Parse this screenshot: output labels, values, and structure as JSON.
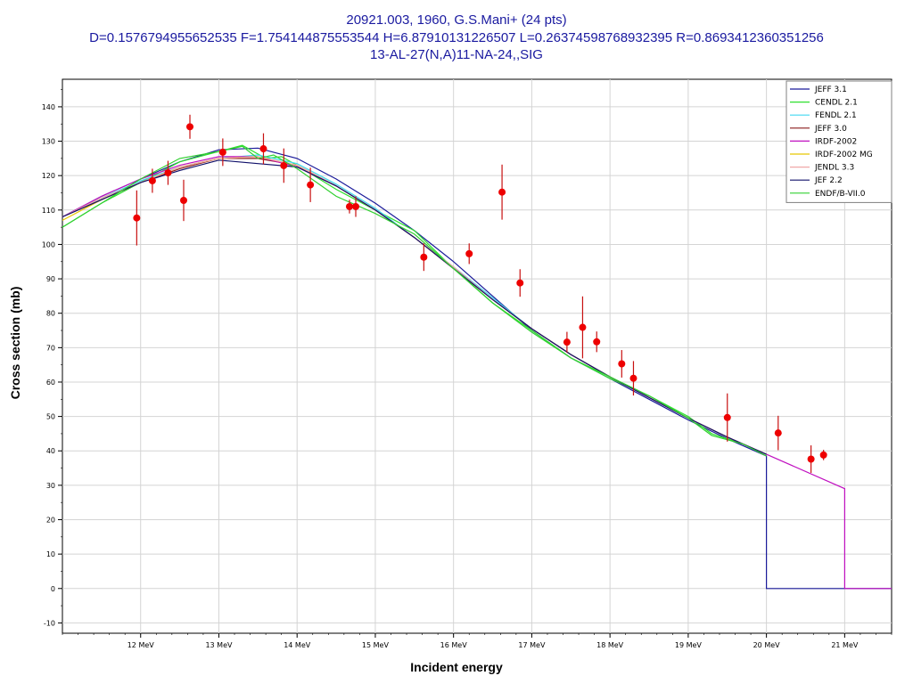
{
  "title": {
    "line1": "20921.003, 1960, G.S.Mani+ (24 pts)",
    "line2": "D=0.1576794955652535 F=1.754144875553544 H=6.87910131226507 L=0.26374598768932395 R=0.8693412360351256",
    "line3": "13-AL-27(N,A)11-NA-24,,SIG"
  },
  "chart_data": {
    "type": "line",
    "xlabel": "Incident energy",
    "ylabel": "Cross section (mb)",
    "xlim": [
      11.0,
      21.6
    ],
    "ylim": [
      -13,
      148
    ],
    "x_ticks": [
      12,
      13,
      14,
      15,
      16,
      17,
      18,
      19,
      20,
      21
    ],
    "x_tick_labels": [
      "12 MeV",
      "13 MeV",
      "14 MeV",
      "15 MeV",
      "16 MeV",
      "17 MeV",
      "18 MeV",
      "19 MeV",
      "20 MeV",
      "21 MeV"
    ],
    "y_ticks": [
      -10,
      0,
      10,
      20,
      30,
      40,
      50,
      60,
      70,
      80,
      90,
      100,
      110,
      120,
      130,
      140
    ],
    "grid": true,
    "legend_position": "top-right",
    "series": [
      {
        "name": "JEFF 3.1",
        "color": "#1a1a9a",
        "x": [
          11.0,
          11.5,
          12.0,
          12.5,
          13.0,
          13.5,
          14.0,
          14.5,
          15.0,
          15.5,
          16.0,
          16.5,
          17.0,
          17.5,
          18.0,
          18.5,
          19.0,
          19.5,
          20.0,
          20.0,
          21.6
        ],
        "y": [
          108,
          114,
          119,
          124,
          127.5,
          128,
          125,
          119,
          112,
          104,
          95,
          85,
          75,
          67,
          61,
          55,
          49,
          43.5,
          38.5,
          0,
          0
        ]
      },
      {
        "name": "CENDL 2.1",
        "color": "#2ee02e",
        "x": [
          11.0,
          11.5,
          12.0,
          12.5,
          13.0,
          13.3,
          13.6,
          13.8,
          14.0,
          14.5,
          15.0,
          15.5,
          16.0,
          16.5,
          17.0,
          17.5,
          18.0,
          18.5,
          19.0,
          19.3,
          19.7,
          20.0
        ],
        "y": [
          105,
          112,
          118,
          124,
          127,
          128.8,
          125,
          125.5,
          123,
          116,
          110,
          104,
          93,
          83,
          75,
          67,
          61,
          56,
          50,
          45,
          42,
          39
        ]
      },
      {
        "name": "FENDL 2.1",
        "color": "#40d8f0",
        "x": [
          11.0,
          11.5,
          12.0,
          12.5,
          13.0,
          13.5,
          14.0,
          14.5,
          15.0,
          15.5,
          16.0,
          16.5,
          17.0,
          17.5,
          18.0,
          18.5,
          19.0,
          19.5,
          20.0
        ],
        "y": [
          108,
          113.5,
          118.5,
          122.5,
          125,
          126,
          123.5,
          117.5,
          110.5,
          102,
          93.5,
          84.5,
          75.5,
          68,
          61.5,
          55.5,
          49.5,
          44,
          39
        ]
      },
      {
        "name": "JEFF 3.0",
        "color": "#8a1a1a",
        "x": [
          11.0,
          11.5,
          12.0,
          12.5,
          13.0,
          13.5,
          14.0,
          14.5,
          15.0,
          15.5,
          16.0,
          16.5,
          17.0,
          17.5,
          18.0,
          18.5,
          19.0,
          19.5,
          20.0
        ],
        "y": [
          108,
          113,
          118,
          122,
          125,
          125,
          123,
          117,
          110,
          102,
          93,
          84,
          75.5,
          68,
          61.5,
          55.5,
          49.5,
          44,
          39
        ]
      },
      {
        "name": "IRDF-2002",
        "color": "#c010c0",
        "x": [
          11.0,
          11.5,
          12.0,
          12.5,
          13.0,
          13.5,
          14.0,
          14.5,
          15.0,
          15.5,
          16.0,
          16.5,
          17.0,
          17.5,
          18.0,
          18.5,
          19.0,
          19.5,
          20.0,
          21.0,
          21.0,
          21.6
        ],
        "y": [
          108,
          114,
          119,
          123,
          125.5,
          125.5,
          122.5,
          117,
          110,
          102,
          93,
          84,
          75.5,
          68,
          61.5,
          55.5,
          49.5,
          44,
          39,
          29,
          0,
          0
        ]
      },
      {
        "name": "IRDF-2002 MG",
        "color": "#e8c800",
        "x": [
          11.0,
          11.5,
          12.0,
          12.5,
          13.0,
          13.5,
          14.0,
          14.5,
          15.0,
          15.5,
          16.0,
          16.5,
          17.0,
          17.5,
          18.0,
          18.5,
          19.0,
          19.5,
          20.0
        ],
        "y": [
          107,
          113,
          118,
          122.5,
          125,
          125.5,
          123,
          117,
          110,
          102,
          93,
          84,
          75.5,
          68,
          61.5,
          55.5,
          49.5,
          44,
          39
        ]
      },
      {
        "name": "JENDL 3.3",
        "color": "#f0a8a8",
        "x": [
          11.0,
          11.5,
          12.0,
          12.5,
          13.0,
          13.5,
          14.0,
          14.5,
          15.0,
          15.5,
          16.0,
          16.5,
          17.0,
          17.5,
          18.0,
          18.5,
          19.0,
          19.5,
          20.0
        ],
        "y": [
          108,
          113.5,
          118,
          122.5,
          125,
          125.5,
          123,
          117,
          110,
          102,
          93.5,
          84,
          75.5,
          68,
          61.5,
          55.5,
          49.5,
          44,
          39
        ]
      },
      {
        "name": "JEF 2.2",
        "color": "#10106a",
        "x": [
          11.0,
          11.5,
          12.0,
          12.5,
          13.0,
          13.5,
          14.0,
          14.5,
          15.0,
          15.5,
          16.0,
          16.5,
          17.0,
          17.5,
          18.0,
          18.5,
          19.0,
          19.5,
          20.0
        ],
        "y": [
          108,
          113,
          118,
          121.5,
          124.5,
          123.5,
          122.5,
          117,
          110,
          102,
          93,
          84,
          75.5,
          68,
          61.5,
          55.5,
          49.5,
          44,
          39
        ]
      },
      {
        "name": "ENDF/B-VII.0",
        "color": "#30d030",
        "x": [
          11.0,
          11.5,
          12.0,
          12.5,
          13.0,
          13.3,
          13.5,
          13.7,
          14.0,
          14.5,
          15.0,
          15.5,
          16.0,
          16.5,
          17.0,
          17.5,
          18.0,
          18.5,
          19.0,
          19.3,
          19.7,
          20.0
        ],
        "y": [
          105,
          112,
          119,
          125,
          127,
          128.5,
          125,
          126,
          122,
          114,
          109,
          103,
          93,
          83,
          74.5,
          67,
          61.5,
          56,
          49.5,
          44.5,
          42,
          38.5
        ]
      }
    ],
    "experimental": {
      "name": "G.S.Mani+",
      "color": "#ee0000",
      "points": [
        {
          "x": 11.95,
          "y": 107.7,
          "err": 8
        },
        {
          "x": 12.15,
          "y": 118.5,
          "err": 3.5
        },
        {
          "x": 12.35,
          "y": 120.8,
          "err": 3.5
        },
        {
          "x": 12.55,
          "y": 112.8,
          "err": 6
        },
        {
          "x": 12.63,
          "y": 134.2,
          "err": 3.5
        },
        {
          "x": 13.05,
          "y": 126.8,
          "err": 4
        },
        {
          "x": 13.57,
          "y": 127.8,
          "err": 4.5
        },
        {
          "x": 13.83,
          "y": 122.9,
          "err": 5
        },
        {
          "x": 14.17,
          "y": 117.3,
          "err": 5
        },
        {
          "x": 14.67,
          "y": 111.0,
          "err": 2
        },
        {
          "x": 14.75,
          "y": 111.0,
          "err": 3
        },
        {
          "x": 15.62,
          "y": 96.3,
          "err": 4
        },
        {
          "x": 16.2,
          "y": 97.3,
          "err": 3
        },
        {
          "x": 16.62,
          "y": 115.2,
          "err": 8
        },
        {
          "x": 16.85,
          "y": 88.8,
          "err": 4
        },
        {
          "x": 17.45,
          "y": 71.6,
          "err": 3
        },
        {
          "x": 17.65,
          "y": 75.9,
          "err": 9
        },
        {
          "x": 17.83,
          "y": 71.7,
          "err": 3
        },
        {
          "x": 18.15,
          "y": 65.3,
          "err": 4
        },
        {
          "x": 18.3,
          "y": 61.1,
          "err": 5
        },
        {
          "x": 19.5,
          "y": 49.7,
          "err": 7
        },
        {
          "x": 20.15,
          "y": 45.2,
          "err": 5
        },
        {
          "x": 20.57,
          "y": 37.6,
          "err": 4
        },
        {
          "x": 20.73,
          "y": 38.8,
          "err": 1.5
        }
      ]
    }
  }
}
